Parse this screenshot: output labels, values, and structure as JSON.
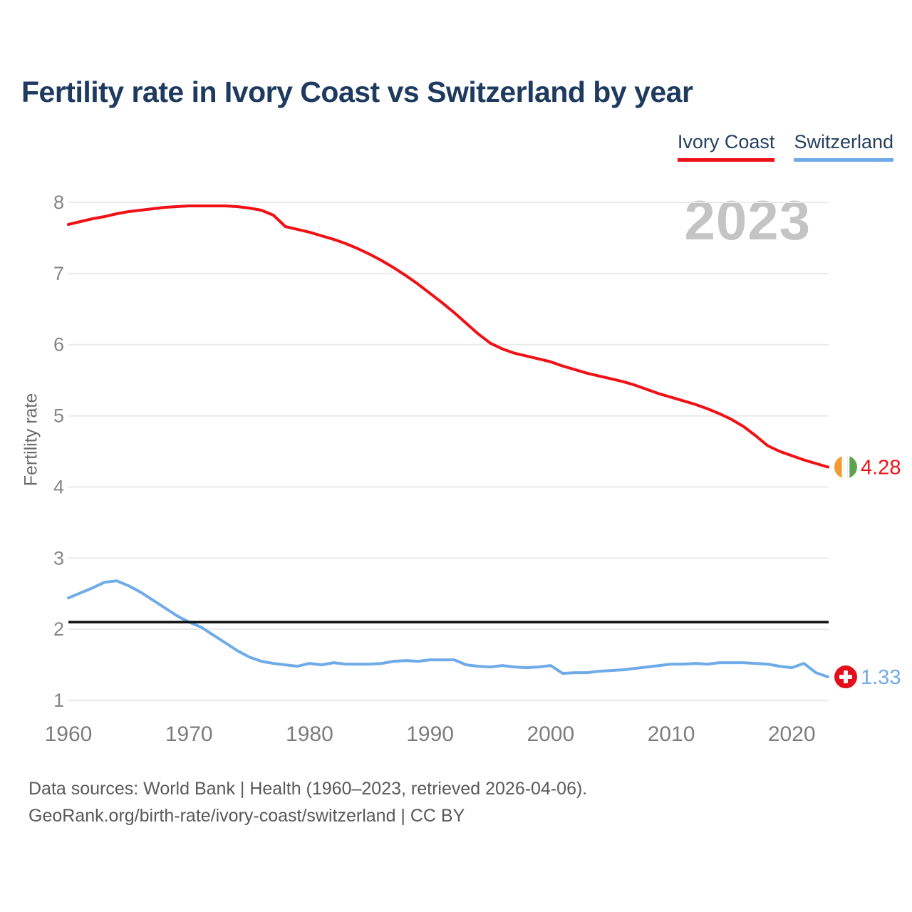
{
  "title": "Fertility rate in Ivory Coast vs Switzerland by year",
  "watermark": "2023",
  "legend": {
    "items": [
      {
        "label": "Ivory Coast",
        "color": "#f01116"
      },
      {
        "label": "Switzerland",
        "color": "#6fabe8"
      }
    ]
  },
  "footer": {
    "line1": "Data sources: World Bank | Health (1960–2023, retrieved 2026-04-06).",
    "line2": "GeoRank.org/birth-rate/ivory-coast/switzerland | CC BY"
  },
  "chart_data": {
    "type": "line",
    "title": "Fertility rate in Ivory Coast vs Switzerland by year",
    "xlabel": "",
    "ylabel": "Fertility rate",
    "xlim": [
      1960,
      2023
    ],
    "ylim": [
      1,
      8
    ],
    "xticks": [
      1960,
      1970,
      1980,
      1990,
      2000,
      2010,
      2020
    ],
    "yticks": [
      1,
      2,
      3,
      4,
      5,
      6,
      7,
      8
    ],
    "grid": "horizontal",
    "legend_position": "top-right",
    "x": [
      1960,
      1961,
      1962,
      1963,
      1964,
      1965,
      1966,
      1967,
      1968,
      1969,
      1970,
      1971,
      1972,
      1973,
      1974,
      1975,
      1976,
      1977,
      1978,
      1979,
      1980,
      1981,
      1982,
      1983,
      1984,
      1985,
      1986,
      1987,
      1988,
      1989,
      1990,
      1991,
      1992,
      1993,
      1994,
      1995,
      1996,
      1997,
      1998,
      1999,
      2000,
      2001,
      2002,
      2003,
      2004,
      2005,
      2006,
      2007,
      2008,
      2009,
      2010,
      2011,
      2012,
      2013,
      2014,
      2015,
      2016,
      2017,
      2018,
      2019,
      2020,
      2021,
      2022,
      2023
    ],
    "series": [
      {
        "name": "Ivory Coast",
        "color": "#f01116",
        "flag_icon": "ivory-coast-flag-icon",
        "end_label": "4.28",
        "values": [
          7.69,
          7.73,
          7.77,
          7.8,
          7.84,
          7.87,
          7.89,
          7.91,
          7.93,
          7.94,
          7.95,
          7.95,
          7.95,
          7.95,
          7.94,
          7.92,
          7.89,
          7.82,
          7.66,
          7.62,
          7.58,
          7.53,
          7.48,
          7.42,
          7.35,
          7.27,
          7.18,
          7.08,
          6.97,
          6.85,
          6.72,
          6.59,
          6.45,
          6.3,
          6.15,
          6.02,
          5.94,
          5.88,
          5.84,
          5.8,
          5.76,
          5.7,
          5.65,
          5.6,
          5.56,
          5.52,
          5.48,
          5.43,
          5.37,
          5.31,
          5.26,
          5.21,
          5.16,
          5.1,
          5.03,
          4.95,
          4.85,
          4.72,
          4.58,
          4.5,
          4.44,
          4.38,
          4.33,
          4.28
        ]
      },
      {
        "name": "Switzerland",
        "color": "#6fabe8",
        "flag_icon": "switzerland-flag-icon",
        "end_label": "1.33",
        "values": [
          2.44,
          2.51,
          2.58,
          2.66,
          2.68,
          2.61,
          2.52,
          2.41,
          2.3,
          2.19,
          2.1,
          2.03,
          1.92,
          1.81,
          1.7,
          1.61,
          1.55,
          1.52,
          1.5,
          1.48,
          1.52,
          1.5,
          1.53,
          1.51,
          1.51,
          1.51,
          1.52,
          1.55,
          1.56,
          1.55,
          1.57,
          1.57,
          1.57,
          1.5,
          1.48,
          1.47,
          1.49,
          1.47,
          1.46,
          1.47,
          1.49,
          1.38,
          1.39,
          1.39,
          1.41,
          1.42,
          1.43,
          1.45,
          1.47,
          1.49,
          1.51,
          1.51,
          1.52,
          1.51,
          1.53,
          1.53,
          1.53,
          1.52,
          1.51,
          1.48,
          1.46,
          1.52,
          1.39,
          1.33
        ]
      }
    ],
    "reference_line": {
      "value": 2.1,
      "color": "#0c0c0c"
    },
    "flag_colors": {
      "ivory_coast": {
        "orange": "#f29b33",
        "white": "#ffffff",
        "white_ridge": "#e9e9e9",
        "green": "#5fa24d"
      },
      "switzerland": {
        "red": "#e30f1a",
        "cross": "#ffffff"
      }
    }
  }
}
